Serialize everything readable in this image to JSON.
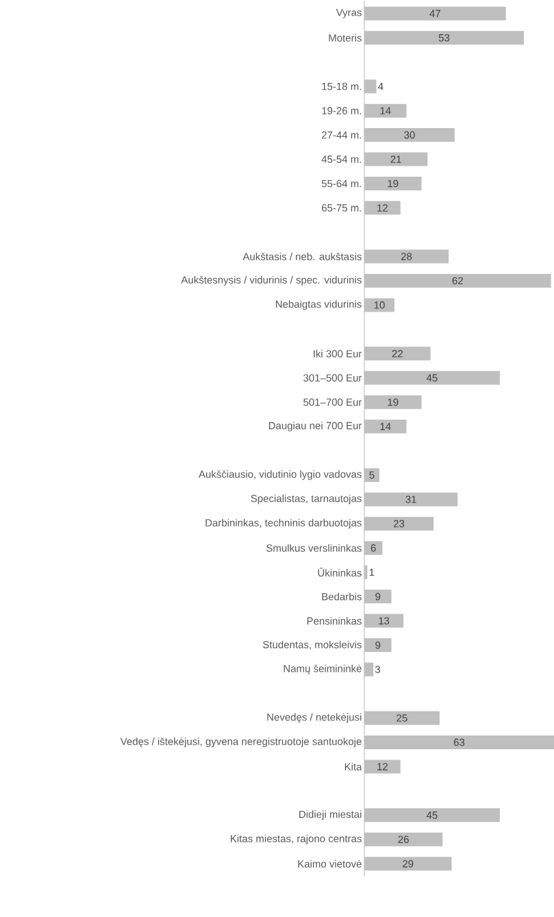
{
  "chart_data": {
    "type": "bar",
    "orientation": "horizontal",
    "color": "#bfbfbf",
    "data_labels": true,
    "categories": [
      "Vyras",
      "Moteris",
      null,
      "15-18 m.",
      "19-26 m.",
      "27-44 m.",
      "45-54 m.",
      "55-64 m.",
      "65-75 m.",
      null,
      "Aukštasis / neb. aukštasis",
      "Aukštesnysis / vidurinis / spec. vidurinis",
      "Nebaigtas vidurinis",
      null,
      "Iki 300 Eur",
      "301–500 Eur",
      "501–700 Eur",
      "Daugiau nei 700 Eur",
      null,
      "Aukščiausio, vidutinio lygio vadovas",
      "Specialistas, tarnautojas",
      "Darbininkas, techninis darbuotojas",
      "Smulkus verslininkas",
      "Ūkininkas",
      "Bedarbis",
      "Pensininkas",
      "Studentas, moksleivis",
      "Namų šeimininkė",
      null,
      "Nevedęs / netekėjusi",
      "Vedęs / ištekėjusi, gyvena neregistruotoje santuokoje",
      "Kita",
      null,
      "Didieji miestai",
      "Kitas miestas, rajono centras",
      "Kaimo vietovė"
    ],
    "values": [
      47,
      53,
      null,
      4,
      14,
      30,
      21,
      19,
      12,
      null,
      28,
      62,
      10,
      null,
      22,
      45,
      19,
      14,
      null,
      5,
      31,
      23,
      6,
      1,
      9,
      13,
      9,
      3,
      null,
      25,
      63,
      12,
      null,
      45,
      26,
      29
    ]
  }
}
